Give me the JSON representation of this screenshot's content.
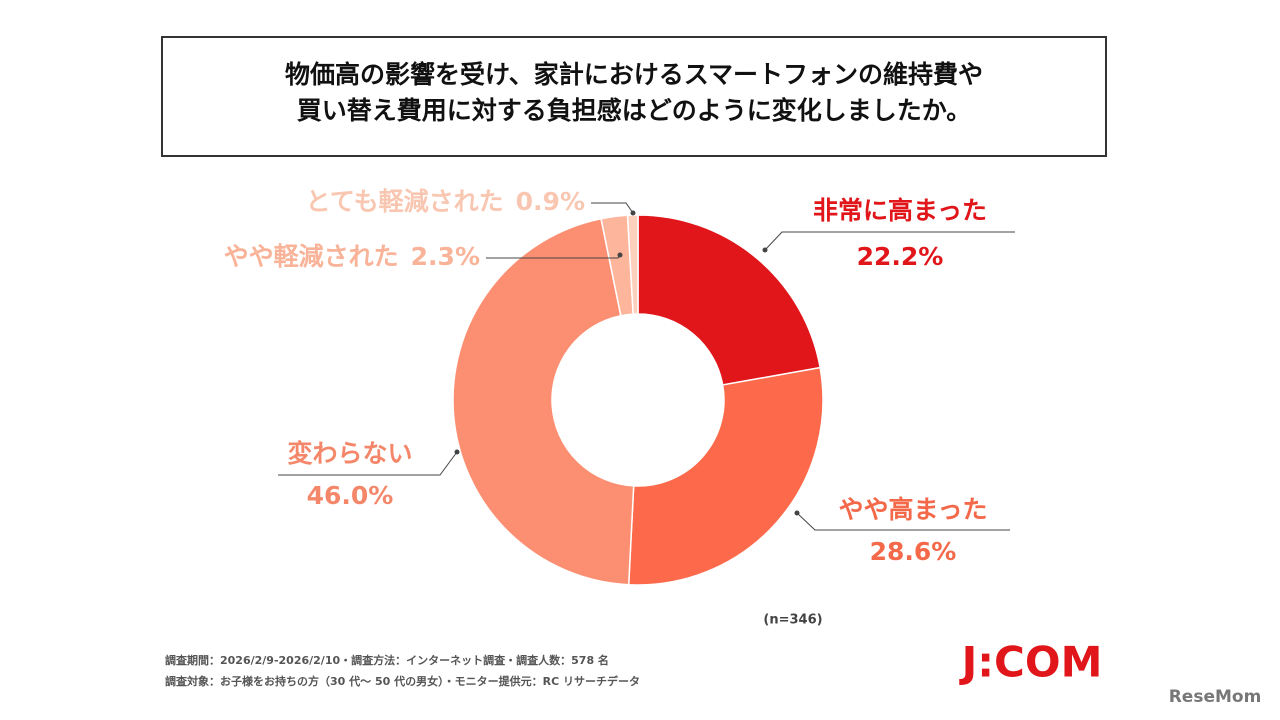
{
  "chart_data": {
    "type": "pie",
    "title": [
      "物価高の影響を受け、家計におけるスマートフォンの維持費や",
      "買い替え費用に対する負担感はどのように変化しましたか。"
    ],
    "categories": [
      "非常に高まった",
      "やや高まった",
      "変わらない",
      "やや軽減された",
      "とても軽減された"
    ],
    "values": [
      22.2,
      28.6,
      46.0,
      2.3,
      0.9
    ],
    "value_labels": [
      "22.2%",
      "28.6%",
      "46.0%",
      "2.3%",
      "0.9%"
    ],
    "colors": [
      "#e0161a",
      "#fc6a4b",
      "#fc8f72",
      "#fdb59c",
      "#fdd0bd"
    ],
    "label_colors": [
      "#e0161a",
      "#f4694a",
      "#f4876a",
      "#f8b398",
      "#f9c7b1"
    ],
    "note": "(n=346)",
    "footnotes": [
      "調査期間：2026/2/9-2026/2/10・調査方法：インターネット調査・調査人数：578 名",
      "調査対象：お子様をお持ちの方（30 代～ 50 代の男女）・モニター提供元：RC リサーチデータ"
    ],
    "brand": "J:COM",
    "source": "ReseMom"
  }
}
